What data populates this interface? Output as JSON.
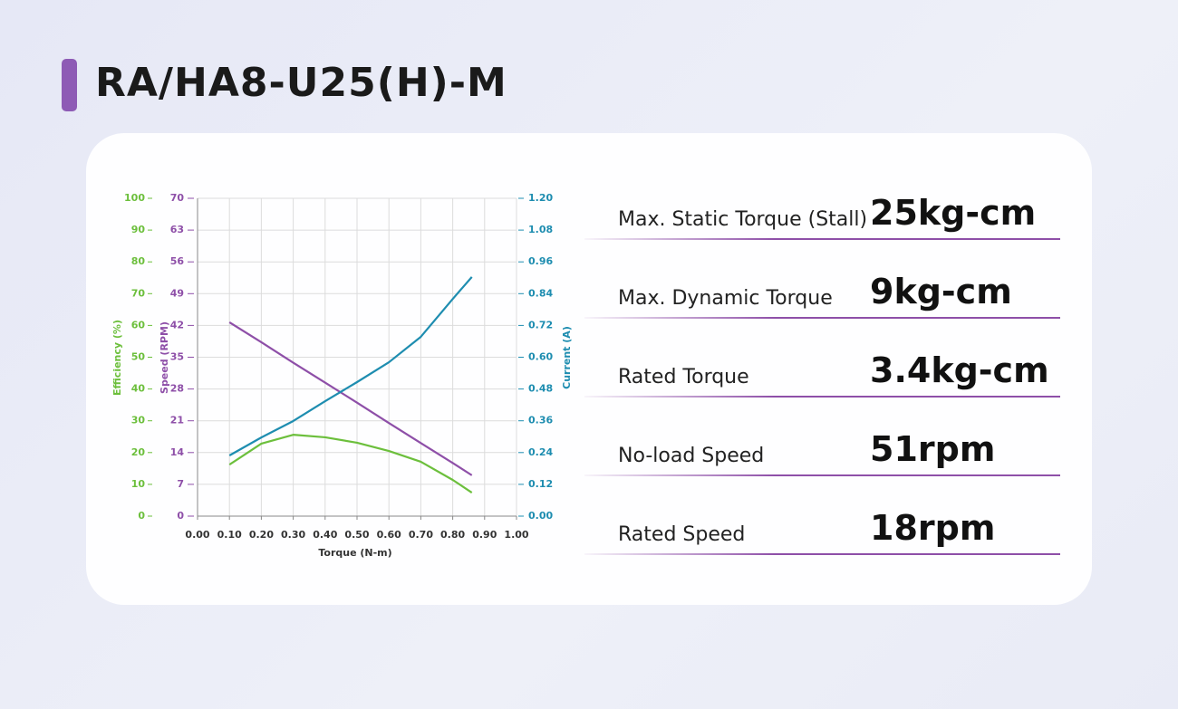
{
  "title": "RA/HA8-U25(H)-M",
  "chart_data": {
    "type": "line",
    "xlabel": "Torque (N-m)",
    "ylabel": "Speed (RPM)",
    "y2label": "Current (A)",
    "y3label": "Efficiency (%)",
    "x": [
      0.1,
      0.2,
      0.3,
      0.4,
      0.5,
      0.6,
      0.7,
      0.8,
      0.86
    ],
    "xlim": [
      0,
      1
    ],
    "xticks": [
      {
        "value": 0,
        "label": "0.00"
      },
      {
        "value": 0.1,
        "label": "0.10"
      },
      {
        "value": 0.2,
        "label": "0.20"
      },
      {
        "value": 0.3,
        "label": "0.30"
      },
      {
        "value": 0.4,
        "label": "0.40"
      },
      {
        "value": 0.5,
        "label": "0.50"
      },
      {
        "value": 0.6,
        "label": "0.60"
      },
      {
        "value": 0.7,
        "label": "0.70"
      },
      {
        "value": 0.8,
        "label": "0.80"
      },
      {
        "value": 0.9,
        "label": "0.90"
      },
      {
        "value": 1,
        "label": "1.00"
      }
    ],
    "ylim": [
      0,
      70
    ],
    "yticks": [
      0,
      7,
      14,
      21,
      28,
      35,
      42,
      49,
      56,
      63,
      70
    ],
    "y2lim": [
      0,
      1.2
    ],
    "y2ticks": [
      {
        "value": 0,
        "label": "0.00"
      },
      0.12,
      0.24,
      0.36,
      0.48,
      {
        "value": 0.6,
        "label": "0.60"
      },
      0.72,
      0.84,
      0.96,
      1.08,
      {
        "value": 1.2,
        "label": "1.20"
      }
    ],
    "y3lim": [
      0,
      100
    ],
    "y3ticks": [
      0,
      10,
      20,
      30,
      40,
      50,
      60,
      70,
      80,
      90,
      100
    ],
    "grid": true,
    "series": [
      {
        "name": "Speed",
        "color": "#8e4fa8",
        "axis": "y",
        "values": [
          42.7,
          38.3,
          33.8,
          29.4,
          25.0,
          20.5,
          16.1,
          11.7,
          9.0
        ]
      },
      {
        "name": "Current",
        "color": "#1e8db0",
        "axis": "y2",
        "values": [
          0.229,
          0.297,
          0.359,
          0.434,
          0.506,
          0.581,
          0.677,
          0.82,
          0.903
        ]
      },
      {
        "name": "Efficiency",
        "color": "#6cbf3c",
        "axis": "y3",
        "values": [
          16.2,
          22.8,
          25.6,
          24.8,
          23.1,
          20.5,
          17.1,
          11.4,
          7.4
        ]
      }
    ]
  },
  "specs": [
    {
      "label": "Max. Static Torque (Stall)",
      "value": "25kg-cm"
    },
    {
      "label": "Max. Dynamic Torque",
      "value": "9kg-cm"
    },
    {
      "label": "Rated Torque",
      "value": "3.4kg-cm"
    },
    {
      "label": "No-load Speed",
      "value": "51rpm"
    },
    {
      "label": "Rated Speed",
      "value": "18rpm"
    }
  ]
}
